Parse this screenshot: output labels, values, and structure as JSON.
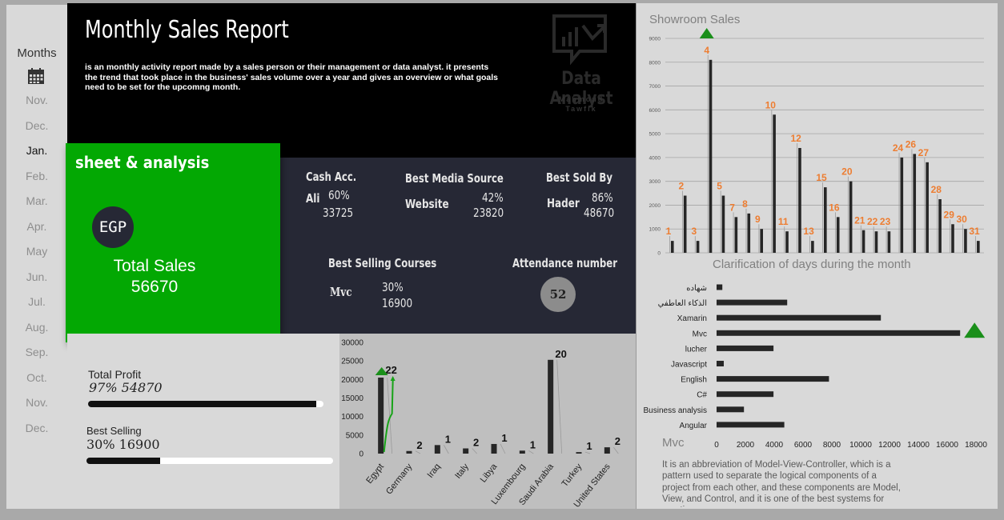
{
  "months": {
    "title": "Months",
    "icon": "calendar-icon",
    "items": [
      "Nov.",
      "Dec.",
      "Jan.",
      "Feb.",
      "Mar.",
      "Apr.",
      "May",
      "Jun.",
      "Jul.",
      "Aug.",
      "Sep.",
      "Oct.",
      "Nov.",
      "Dec."
    ],
    "active_index": 2
  },
  "header": {
    "title": "Monthly Sales Report",
    "description": "is an monthly activity report made by a sales person or their management or data analyst. it presents the trend that took place in the business' sales volume over a year and gives an overview or what goals need to be set for the upcomng month.",
    "logo_name": "Data Analyst",
    "logo_author_first": "Mahmoud",
    "logo_author_last": "Tawfik"
  },
  "summary": {
    "title": "sheet & analysis",
    "currency": "EGP",
    "total_label": "Total Sales",
    "total_value": "56670"
  },
  "stats": {
    "cash": {
      "title": "Cash Acc.",
      "name": "Ali",
      "percent": "60%",
      "amount": "33725"
    },
    "media": {
      "title": "Best Media Source",
      "name": "Website",
      "percent": "42%",
      "amount": "23820"
    },
    "sold": {
      "title": "Best Sold By",
      "name": "Hader",
      "percent": "86%",
      "amount": "48670"
    },
    "courses": {
      "title": "Best Selling Courses",
      "name": "Mvc",
      "percent": "30%",
      "amount": "16900"
    },
    "attendance": {
      "title": "Attendance number",
      "value": "52"
    }
  },
  "profit": {
    "total_profit_label": "Total Profit",
    "total_profit_value": "97%  54870",
    "total_profit_fraction": 0.97,
    "best_selling_label": "Best Selling",
    "best_selling_value": "30%  16900",
    "best_selling_fraction": 0.3
  },
  "colors": {
    "green": "#03a803",
    "dark": "#262835",
    "orange": "#ed7d31",
    "bar": "#262626",
    "marker": "#1a8f1a"
  },
  "mvc": {
    "title": "Mvc",
    "description": "It is an abbreviation of Model-View-Controller, which is a pattern used to separate the logical components of a project from each other, and these components are Model, View, and Control, and it is one of the best systems for creating an"
  },
  "chart_data": [
    {
      "type": "bar",
      "title": "Showroom Sales",
      "categories": [
        "1",
        "2",
        "3",
        "4",
        "5",
        "7",
        "8",
        "9",
        "10",
        "11",
        "12",
        "13",
        "15",
        "16",
        "20",
        "21",
        "22",
        "23",
        "24",
        "26",
        "27",
        "28",
        "29",
        "30",
        "31"
      ],
      "values": [
        500,
        2400,
        500,
        8100,
        2400,
        1500,
        1650,
        1000,
        5800,
        900,
        4400,
        500,
        2750,
        1500,
        3000,
        950,
        900,
        900,
        4000,
        4150,
        3800,
        2250,
        1200,
        1000,
        500
      ],
      "ylim": [
        0,
        9000
      ],
      "yticks": [
        0,
        1000,
        2000,
        3000,
        4000,
        5000,
        6000,
        7000,
        8000,
        9000
      ],
      "max_marker": "4"
    },
    {
      "type": "bar",
      "orientation": "horizontal",
      "title": "Clarification of days during the month",
      "categories": [
        "شهاده",
        "الذكاء العاطفي",
        "Xamarin",
        "Mvc",
        "lucher",
        "Javascript",
        "English",
        "C#",
        "Business analysis",
        "Angular"
      ],
      "values": [
        400,
        4900,
        11400,
        16900,
        3950,
        500,
        7800,
        3950,
        1900,
        4700
      ],
      "xlim": [
        0,
        18000
      ],
      "xticks": [
        0,
        2000,
        4000,
        6000,
        8000,
        10000,
        12000,
        14000,
        16000,
        18000
      ],
      "max_marker": "Mvc"
    },
    {
      "type": "bar",
      "title": "",
      "categories": [
        "Egypt",
        "Germany",
        "Iraq",
        "Italy",
        "Libya",
        "Luxembourg",
        "Saudi Arabia",
        "Turkey",
        "United States"
      ],
      "values": [
        20500,
        700,
        2300,
        1400,
        2600,
        800,
        25300,
        400,
        1700
      ],
      "labels": [
        "22",
        "2",
        "1",
        "2",
        "1",
        "1",
        "20",
        "1",
        "2"
      ],
      "ylim": [
        0,
        30000
      ],
      "yticks": [
        0,
        5000,
        10000,
        15000,
        20000,
        25000,
        30000
      ],
      "max_marker": "Egypt"
    }
  ]
}
